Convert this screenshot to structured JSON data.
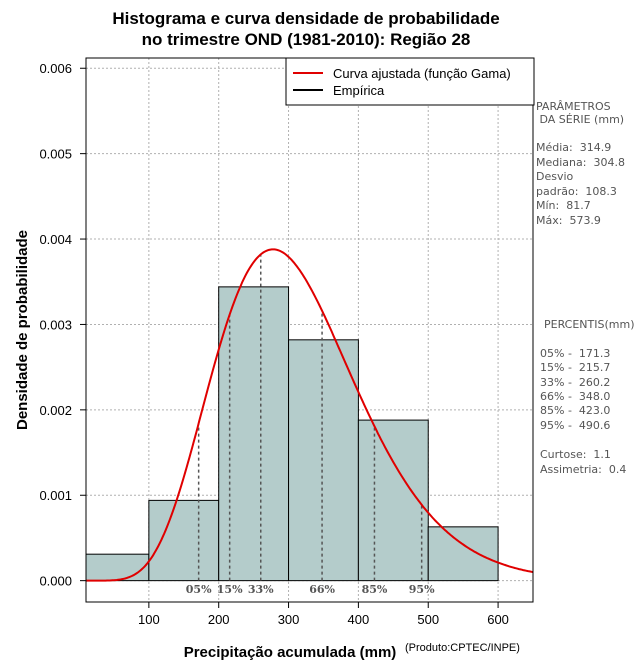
{
  "chart_data": {
    "type": "histogram",
    "title_line1": "Histograma e curva densidade de probabilidade",
    "title_line2": "no trimestre OND (1981-2010): Região 28",
    "xlabel": "Precipitação acumulada (mm)",
    "ylabel": "Densidade de probabilidade",
    "credit": "(Produto:CPTEC/INPE)",
    "xlim": [
      10,
      650
    ],
    "ylim": [
      -0.00025,
      0.00612
    ],
    "x_ticks": [
      100,
      200,
      300,
      400,
      500,
      600
    ],
    "y_ticks": [
      0.0,
      0.001,
      0.002,
      0.003,
      0.004,
      0.005,
      0.006
    ],
    "y_tick_labels": [
      "0.000",
      "0.001",
      "0.002",
      "0.003",
      "0.004",
      "0.005",
      "0.006"
    ],
    "grid": true,
    "bins": [
      {
        "from": 0,
        "to": 100,
        "density": 0.00031
      },
      {
        "from": 100,
        "to": 200,
        "density": 0.00094
      },
      {
        "from": 200,
        "to": 300,
        "density": 0.00344
      },
      {
        "from": 300,
        "to": 400,
        "density": 0.00282
      },
      {
        "from": 400,
        "to": 500,
        "density": 0.00188
      },
      {
        "from": 500,
        "to": 600,
        "density": 0.00063
      }
    ],
    "bar_color": "#b4cccb",
    "curve": {
      "name": "Curva ajustada (função Gama)",
      "distribution": "gamma",
      "mean": 314.9,
      "sd": 108.3,
      "color": "#e00000"
    },
    "legend": [
      {
        "label": "Curva ajustada (função Gama)",
        "color": "#e00000"
      },
      {
        "label": "Empírica",
        "color": "#000000"
      }
    ],
    "legend_position": "top-right",
    "percentile_markers": [
      {
        "label": "05%",
        "value": 171.3
      },
      {
        "label": "15%",
        "value": 215.7
      },
      {
        "label": "33%",
        "value": 260.2
      },
      {
        "label": "66%",
        "value": 348.0
      },
      {
        "label": "85%",
        "value": 423.0
      },
      {
        "label": "95%",
        "value": 490.6
      }
    ]
  },
  "side_panel": {
    "params_header_1": "PARÂMETROS",
    "params_header_2": " DA SÉRIE (mm)",
    "media": "Média:  314.9",
    "mediana": "Mediana:  304.8",
    "desvio_1": "Desvio",
    "desvio_2": "padrão:  108.3",
    "min": "Mín:  81.7",
    "max": "Máx:  573.9",
    "percentis_header": "PERCENTIS(mm)",
    "p05": "05% -  171.3",
    "p15": "15% -  215.7",
    "p33": "33% -  260.2",
    "p66": "66% -  348.0",
    "p85": "85% -  423.0",
    "p95": "95% -  490.6",
    "curtose": "Curtose:  1.1",
    "assimetria": "Assimetria:  0.4"
  }
}
